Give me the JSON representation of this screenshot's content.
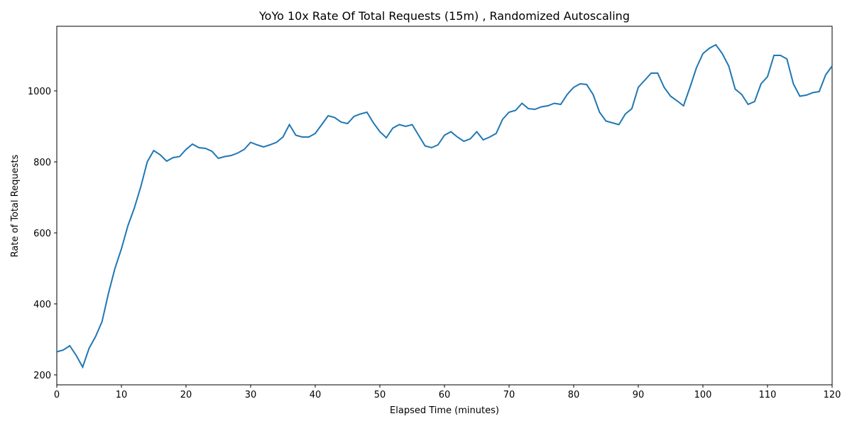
{
  "chart_data": {
    "type": "line",
    "title": "YoYo 10x Rate Of Total Requests (15m) , Randomized Autoscaling",
    "x_label": "Elapsed Time (minutes)",
    "y_label": "Rate of Total Requests",
    "x": [
      0,
      1,
      2,
      3,
      4,
      5,
      6,
      7,
      8,
      9,
      10,
      11,
      12,
      13,
      14,
      15,
      16,
      17,
      18,
      19,
      20,
      21,
      22,
      23,
      24,
      25,
      26,
      27,
      28,
      29,
      30,
      31,
      32,
      33,
      34,
      35,
      36,
      37,
      38,
      39,
      40,
      41,
      42,
      43,
      44,
      45,
      46,
      47,
      48,
      49,
      50,
      51,
      52,
      53,
      54,
      55,
      56,
      57,
      58,
      59,
      60,
      61,
      62,
      63,
      64,
      65,
      66,
      67,
      68,
      69,
      70,
      71,
      72,
      73,
      74,
      75,
      76,
      77,
      78,
      79,
      80,
      81,
      82,
      83,
      84,
      85,
      86,
      87,
      88,
      89,
      90,
      91,
      92,
      93,
      94,
      95,
      96,
      97,
      98,
      99,
      100,
      101,
      102,
      103,
      104,
      105,
      106,
      107,
      108,
      109,
      110,
      111,
      112,
      113,
      114,
      115,
      116,
      117,
      118,
      119,
      120
    ],
    "series": [
      {
        "color": "#1f77b4",
        "values": [
          265,
          270,
          282,
          255,
          222,
          275,
          308,
          350,
          430,
          500,
          555,
          620,
          670,
          730,
          800,
          832,
          820,
          802,
          812,
          815,
          835,
          850,
          840,
          838,
          830,
          810,
          815,
          818,
          825,
          835,
          855,
          848,
          842,
          848,
          855,
          870,
          905,
          875,
          870,
          870,
          880,
          905,
          930,
          925,
          912,
          908,
          928,
          935,
          940,
          910,
          885,
          868,
          895,
          905,
          900,
          905,
          875,
          845,
          840,
          848,
          875,
          885,
          870,
          858,
          865,
          885,
          862,
          870,
          880,
          920,
          940,
          945,
          965,
          950,
          948,
          955,
          958,
          965,
          962,
          990,
          1010,
          1020,
          1018,
          990,
          940,
          915,
          910,
          905,
          935,
          950,
          1010,
          1030,
          1050,
          1050,
          1010,
          985,
          972,
          958,
          1010,
          1065,
          1105,
          1120,
          1130,
          1105,
          1070,
          1005,
          990,
          962,
          970,
          1020,
          1040,
          1100,
          1100,
          1090,
          1020,
          985,
          988,
          995,
          998,
          1045,
          1070
        ]
      }
    ],
    "xlim": [
      0,
      120
    ],
    "ylim": [
      172,
      1182
    ],
    "xticks": [
      0,
      10,
      20,
      30,
      40,
      50,
      60,
      70,
      80,
      90,
      100,
      110,
      120
    ],
    "yticks": [
      200,
      400,
      600,
      800,
      1000
    ]
  }
}
